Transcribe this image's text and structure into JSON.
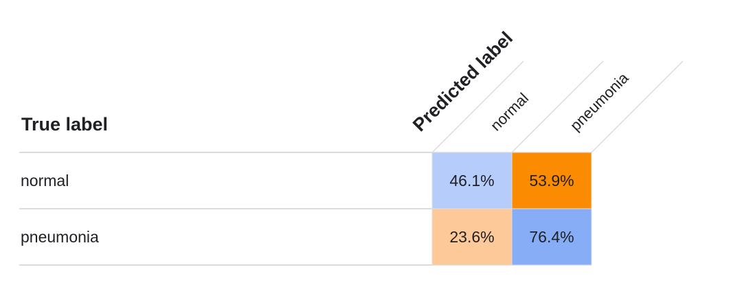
{
  "chart_data": {
    "type": "heatmap",
    "title": "",
    "row_axis_title": "True label",
    "col_axis_title": "Predicted label",
    "rows": [
      "normal",
      "pneumonia"
    ],
    "cols": [
      "normal",
      "pneumonia"
    ],
    "values": [
      [
        "46.1%",
        "53.9%"
      ],
      [
        "23.6%",
        "76.4%"
      ]
    ],
    "numeric_values": [
      [
        46.1,
        53.9
      ],
      [
        23.6,
        76.4
      ]
    ],
    "cell_colors": [
      [
        "#b6cdfb",
        "#fb8b00"
      ],
      [
        "#fec998",
        "#86adf6"
      ]
    ]
  }
}
